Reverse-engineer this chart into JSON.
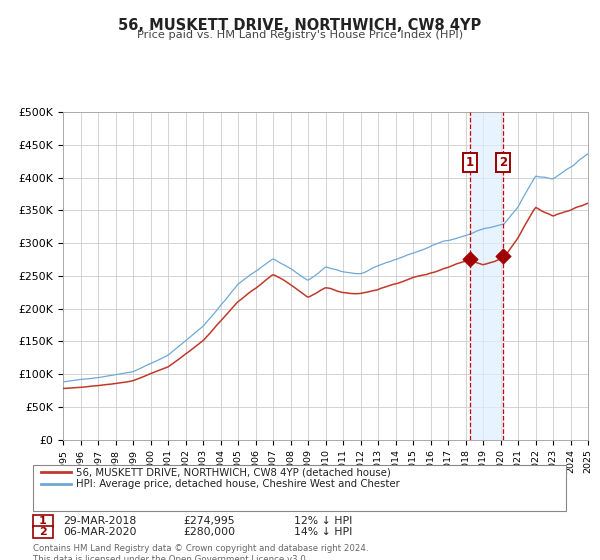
{
  "title": "56, MUSKETT DRIVE, NORTHWICH, CW8 4YP",
  "subtitle": "Price paid vs. HM Land Registry's House Price Index (HPI)",
  "legend_line1": "56, MUSKETT DRIVE, NORTHWICH, CW8 4YP (detached house)",
  "legend_line2": "HPI: Average price, detached house, Cheshire West and Chester",
  "annotation1_date": "29-MAR-2018",
  "annotation1_price": "£274,995",
  "annotation1_hpi": "12% ↓ HPI",
  "annotation2_date": "06-MAR-2020",
  "annotation2_price": "£280,000",
  "annotation2_hpi": "14% ↓ HPI",
  "footnote": "Contains HM Land Registry data © Crown copyright and database right 2024.\nThis data is licensed under the Open Government Licence v3.0.",
  "sale1_year": 2018.24,
  "sale1_price": 274995,
  "sale2_year": 2020.17,
  "sale2_price": 280000,
  "hpi_color": "#6ea8d8",
  "price_color": "#c0392b",
  "marker_color": "#a00000",
  "vline_color": "#cc0000",
  "shade_color": "#ddeeff",
  "grid_color": "#cccccc",
  "bg_color": "#ffffff",
  "ylim_max": 500000,
  "ylim_min": 0,
  "xmin": 1995,
  "xmax": 2025,
  "hpi_waypoints": [
    [
      1995,
      88000
    ],
    [
      1997,
      95000
    ],
    [
      1999,
      105000
    ],
    [
      2001,
      130000
    ],
    [
      2003,
      175000
    ],
    [
      2005,
      240000
    ],
    [
      2007,
      280000
    ],
    [
      2008,
      265000
    ],
    [
      2009,
      245000
    ],
    [
      2010,
      265000
    ],
    [
      2011,
      258000
    ],
    [
      2012,
      255000
    ],
    [
      2013,
      265000
    ],
    [
      2014,
      275000
    ],
    [
      2015,
      285000
    ],
    [
      2016,
      295000
    ],
    [
      2017,
      305000
    ],
    [
      2018,
      313000
    ],
    [
      2019,
      323000
    ],
    [
      2020.2,
      330000
    ],
    [
      2021,
      355000
    ],
    [
      2022,
      400000
    ],
    [
      2023,
      395000
    ],
    [
      2024,
      415000
    ],
    [
      2025.2,
      440000
    ]
  ],
  "pp_waypoints": [
    [
      1995,
      78000
    ],
    [
      1997,
      82000
    ],
    [
      1999,
      90000
    ],
    [
      2001,
      110000
    ],
    [
      2003,
      150000
    ],
    [
      2005,
      210000
    ],
    [
      2007,
      250000
    ],
    [
      2008,
      235000
    ],
    [
      2009,
      215000
    ],
    [
      2010,
      230000
    ],
    [
      2011,
      223000
    ],
    [
      2012,
      222000
    ],
    [
      2013,
      228000
    ],
    [
      2014,
      238000
    ],
    [
      2015,
      248000
    ],
    [
      2016,
      255000
    ],
    [
      2017,
      263000
    ],
    [
      2018.24,
      274995
    ],
    [
      2019,
      270000
    ],
    [
      2020.17,
      280000
    ],
    [
      2021,
      310000
    ],
    [
      2022,
      358000
    ],
    [
      2023,
      345000
    ],
    [
      2024,
      355000
    ],
    [
      2025.2,
      370000
    ]
  ]
}
